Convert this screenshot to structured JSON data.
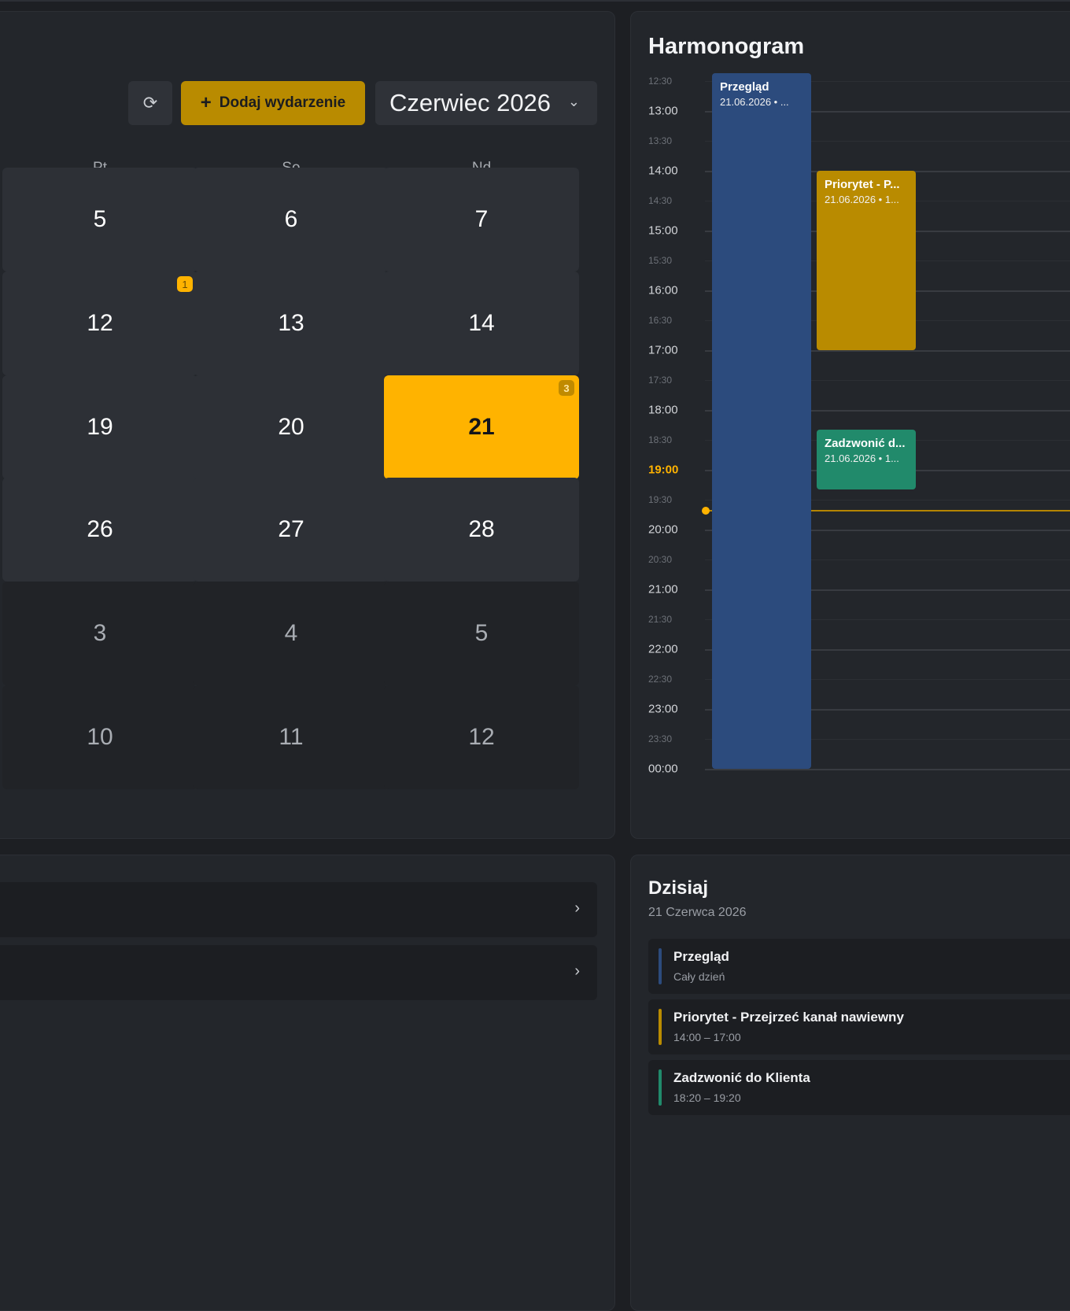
{
  "toolbar": {
    "refresh_icon": "refresh-icon",
    "add_label": "Dodaj wydarzenie",
    "month": "Czerwiec 2026"
  },
  "weekdays": [
    "Pt",
    "So",
    "Nd"
  ],
  "days": [
    {
      "label": "5",
      "state": "normal",
      "badge": ""
    },
    {
      "label": "6",
      "state": "normal",
      "badge": ""
    },
    {
      "label": "7",
      "state": "normal",
      "badge": ""
    },
    {
      "label": "12",
      "state": "normal",
      "badge": "1"
    },
    {
      "label": "13",
      "state": "normal",
      "badge": ""
    },
    {
      "label": "14",
      "state": "normal",
      "badge": ""
    },
    {
      "label": "19",
      "state": "normal",
      "badge": ""
    },
    {
      "label": "20",
      "state": "normal",
      "badge": ""
    },
    {
      "label": "21",
      "state": "today",
      "badge": "3"
    },
    {
      "label": "26",
      "state": "normal",
      "badge": ""
    },
    {
      "label": "27",
      "state": "normal",
      "badge": ""
    },
    {
      "label": "28",
      "state": "normal",
      "badge": ""
    },
    {
      "label": "3",
      "state": "other",
      "badge": ""
    },
    {
      "label": "4",
      "state": "other",
      "badge": ""
    },
    {
      "label": "5",
      "state": "other",
      "badge": ""
    },
    {
      "label": "10",
      "state": "other",
      "badge": ""
    },
    {
      "label": "11",
      "state": "other",
      "badge": ""
    },
    {
      "label": "12",
      "state": "other",
      "badge": ""
    }
  ],
  "schedule": {
    "title": "Harmonogram",
    "times": [
      "12:30",
      "13:00",
      "13:30",
      "14:00",
      "14:30",
      "15:00",
      "15:30",
      "16:00",
      "16:30",
      "17:00",
      "17:30",
      "18:00",
      "18:30",
      "19:00",
      "19:30",
      "20:00",
      "20:30",
      "21:00",
      "21:30",
      "22:00",
      "22:30",
      "23:00",
      "23:30",
      "00:00"
    ],
    "current_time_label": "19:00",
    "now_time": "19:40",
    "events": [
      {
        "title": "Przegląd",
        "subtitle": "21.06.2026 • ...",
        "color": "blue",
        "start": "12:30",
        "end": "24:00",
        "column": 0
      },
      {
        "title": "Priorytet - P...",
        "subtitle": "21.06.2026 • 1...",
        "color": "amber",
        "start": "14:00",
        "end": "17:00",
        "column": 1
      },
      {
        "title": "Zadzwonić d...",
        "subtitle": "21.06.2026 • 1...",
        "color": "green",
        "start": "18:20",
        "end": "19:20",
        "column": 1
      }
    ]
  },
  "list": {
    "count": "2"
  },
  "today": {
    "title": "Dzisiaj",
    "date": "21 Czerwca 2026",
    "items": [
      {
        "name": "Przegląd",
        "time": "Cały dzień",
        "color": "#2c4b7d"
      },
      {
        "name": "Priorytet - Przejrzeć kanał nawiewny",
        "time": "14:00 – 17:00",
        "color": "#b98b00"
      },
      {
        "name": "Zadzwonić do Klienta",
        "time": "18:20 – 19:20",
        "color": "#218a6b"
      }
    ]
  }
}
